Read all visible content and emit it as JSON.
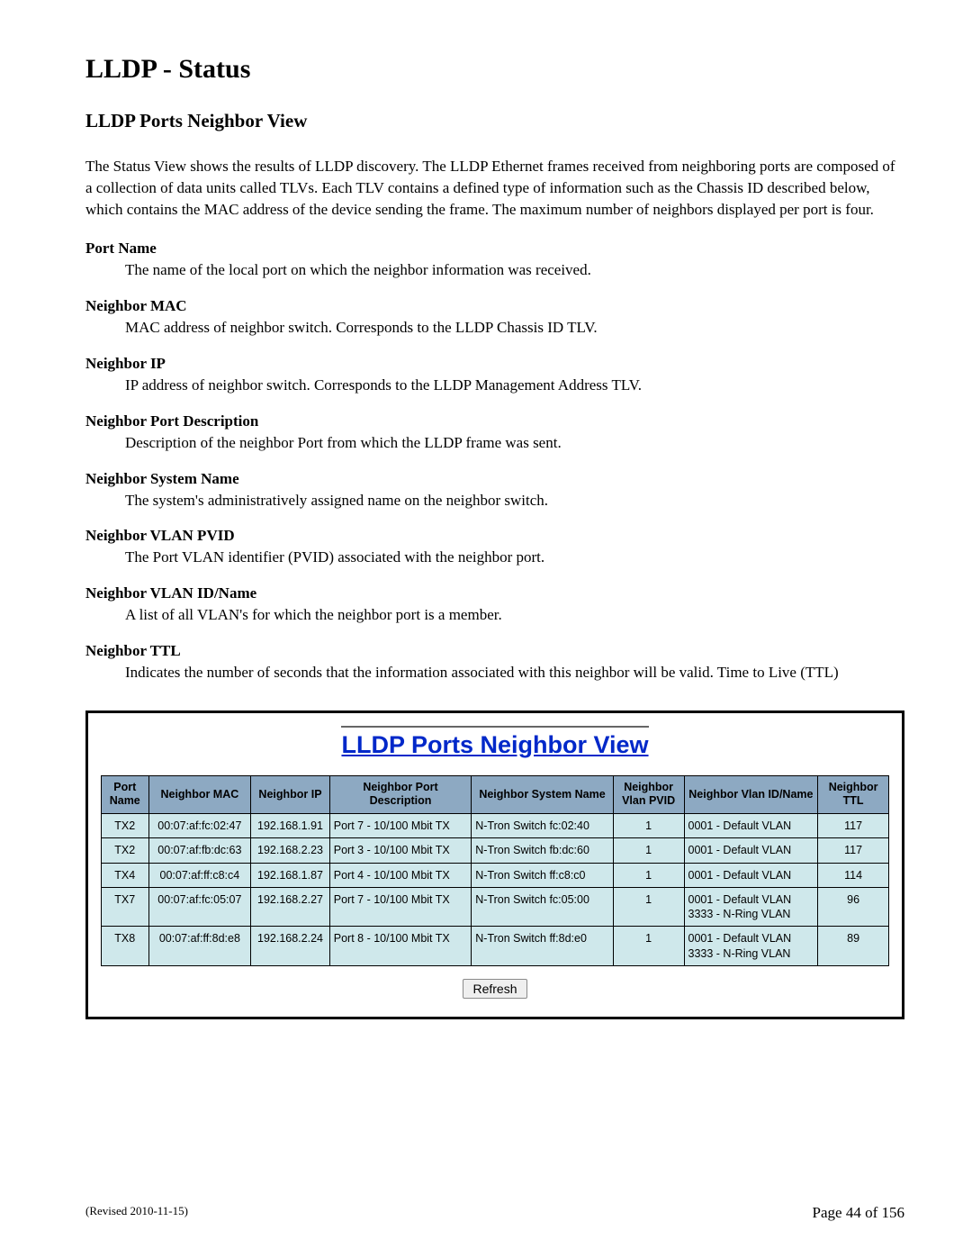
{
  "page": {
    "title": "LLDP - Status",
    "subtitle": "LLDP Ports Neighbor View",
    "intro": "The Status View shows the results of LLDP discovery.  The LLDP Ethernet frames received from neighboring ports are composed of a collection of data units called TLVs. Each TLV contains a defined type of information such as the Chassis ID described below, which contains the MAC address of the device sending the frame. The maximum number of neighbors displayed per port is four.",
    "definitions": [
      {
        "term": "Port Name",
        "desc": "The name of the local port on which the neighbor information was received."
      },
      {
        "term": "Neighbor MAC",
        "desc": "MAC address of neighbor switch. Corresponds to the LLDP Chassis ID TLV."
      },
      {
        "term": "Neighbor IP",
        "desc": "IP address of neighbor switch. Corresponds to the LLDP Management Address TLV."
      },
      {
        "term": "Neighbor Port Description",
        "desc": "Description of the neighbor Port from which the LLDP frame was sent."
      },
      {
        "term": "Neighbor System Name",
        "desc": "The system's administratively assigned name on the neighbor switch."
      },
      {
        "term": "Neighbor VLAN PVID",
        "desc": "The Port VLAN identifier (PVID) associated with the neighbor port."
      },
      {
        "term": "Neighbor VLAN ID/Name",
        "desc": "A list of all VLAN's for which the neighbor port is a member."
      },
      {
        "term": "Neighbor TTL",
        "desc": "Indicates the number of seconds that the information associated with this neighbor will be valid. Time to Live (TTL)"
      }
    ]
  },
  "panel": {
    "title": "LLDP Ports Neighbor View",
    "title_color": "#0028c9",
    "title_underline": true,
    "title_fontsize": 27,
    "header_bg": "#8da9c2",
    "cell_bg": "#cfe8eb",
    "border_color": "#000000",
    "columns": [
      {
        "label": "Port Name",
        "width": "6%",
        "align": "center"
      },
      {
        "label": "Neighbor MAC",
        "width": "13%",
        "align": "center"
      },
      {
        "label": "Neighbor IP",
        "width": "10%",
        "align": "center"
      },
      {
        "label": "Neighbor Port Description",
        "width": "18%",
        "align": "left"
      },
      {
        "label": "Neighbor System Name",
        "width": "18%",
        "align": "left"
      },
      {
        "label": "Neighbor Vlan PVID",
        "width": "9%",
        "align": "center"
      },
      {
        "label": "Neighbor Vlan ID/Name",
        "width": "17%",
        "align": "left"
      },
      {
        "label": "Neighbor TTL",
        "width": "9%",
        "align": "center"
      }
    ],
    "rows": [
      [
        "TX2",
        "00:07:af:fc:02:47",
        "192.168.1.91",
        "Port 7 - 10/100 Mbit TX",
        "N-Tron Switch fc:02:40",
        "1",
        "0001 - Default VLAN",
        "117"
      ],
      [
        "TX2",
        "00:07:af:fb:dc:63",
        "192.168.2.23",
        "Port 3 - 10/100 Mbit TX",
        "N-Tron Switch fb:dc:60",
        "1",
        "0001 - Default VLAN",
        "117"
      ],
      [
        "TX4",
        "00:07:af:ff:c8:c4",
        "192.168.1.87",
        "Port 4 - 10/100 Mbit TX",
        "N-Tron Switch ff:c8:c0",
        "1",
        "0001 - Default VLAN",
        "114"
      ],
      [
        "TX7",
        "00:07:af:fc:05:07",
        "192.168.2.27",
        "Port 7 - 10/100 Mbit TX",
        "N-Tron Switch fc:05:00",
        "1",
        "0001 - Default VLAN\n3333 - N-Ring VLAN",
        "96"
      ],
      [
        "TX8",
        "00:07:af:ff:8d:e8",
        "192.168.2.24",
        "Port 8 - 10/100 Mbit TX",
        "N-Tron Switch ff:8d:e0",
        "1",
        "0001 - Default VLAN\n3333 - N-Ring VLAN",
        "89"
      ]
    ],
    "refresh_label": "Refresh"
  },
  "footer": {
    "revised": "(Revised 2010-11-15)",
    "page": "Page 44 of 156"
  }
}
